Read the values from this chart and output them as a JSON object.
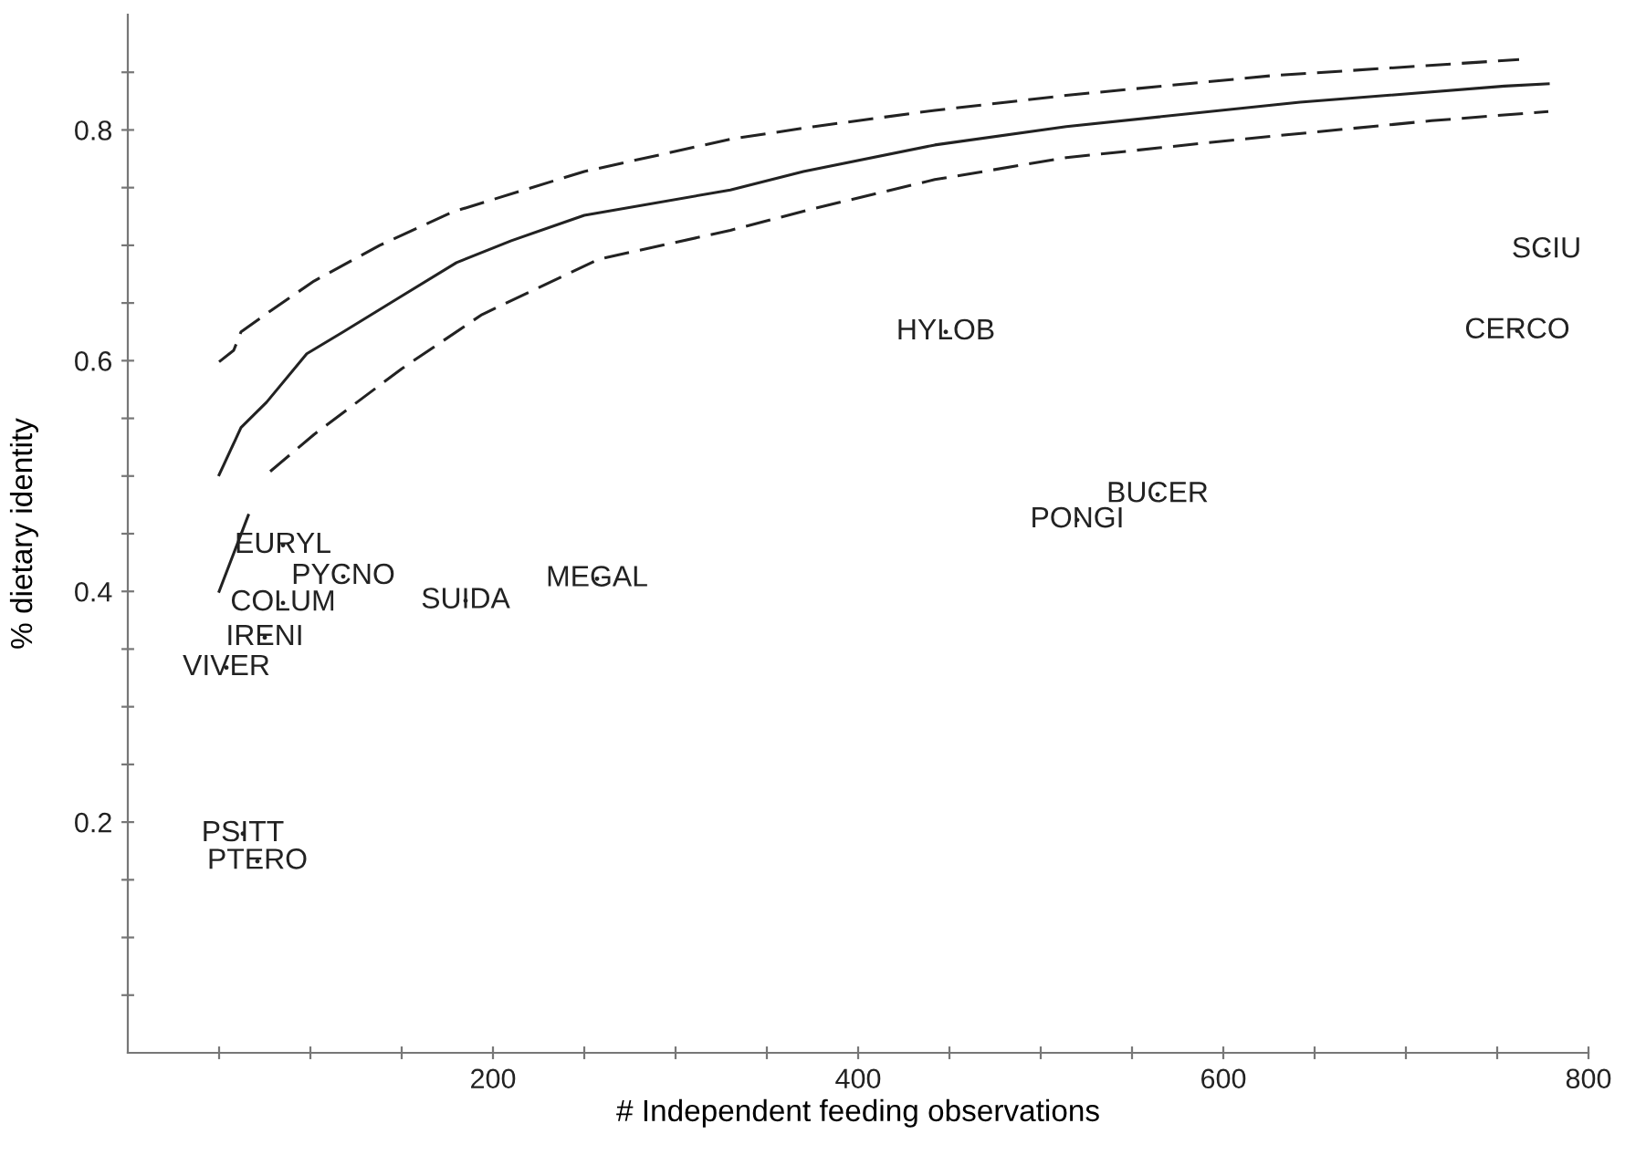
{
  "chart_data": {
    "type": "line",
    "xlabel": "# Independent feeding observations",
    "ylabel": "% dietary identity",
    "xlim": [
      0,
      800
    ],
    "ylim": [
      0,
      0.9
    ],
    "xticks": [
      {
        "value": 50,
        "label": null
      },
      {
        "value": 100,
        "label": null
      },
      {
        "value": 150,
        "label": null
      },
      200,
      {
        "value": 250,
        "label": null
      },
      {
        "value": 300,
        "label": null
      },
      {
        "value": 350,
        "label": null
      },
      400,
      {
        "value": 450,
        "label": null
      },
      {
        "value": 500,
        "label": null
      },
      {
        "value": 550,
        "label": null
      },
      600,
      {
        "value": 650,
        "label": null
      },
      {
        "value": 700,
        "label": null
      },
      {
        "value": 750,
        "label": null
      },
      800
    ],
    "yticks": [
      {
        "value": 0.05,
        "label": null
      },
      {
        "value": 0.1,
        "label": null
      },
      {
        "value": 0.15,
        "label": null
      },
      0.2,
      {
        "value": 0.25,
        "label": null
      },
      {
        "value": 0.3,
        "label": null
      },
      {
        "value": 0.35,
        "label": null
      },
      0.4,
      {
        "value": 0.45,
        "label": null
      },
      {
        "value": 0.5,
        "label": null
      },
      {
        "value": 0.55,
        "label": null
      },
      0.6,
      {
        "value": 0.65,
        "label": null
      },
      {
        "value": 0.7,
        "label": null
      },
      {
        "value": 0.75,
        "label": null
      },
      0.8,
      {
        "value": 0.85,
        "label": null
      }
    ],
    "grid": false,
    "legend": false,
    "series": [
      {
        "color": "#222222",
        "line_style": "solid",
        "x": [
          50,
          62,
          76,
          98,
          118,
          150,
          180,
          210,
          250,
          330,
          370,
          442,
          514,
          642,
          754,
          778
        ],
        "values": [
          0.501,
          0.542,
          0.564,
          0.606,
          0.625,
          0.656,
          0.685,
          0.704,
          0.726,
          0.748,
          0.764,
          0.787,
          0.803,
          0.824,
          0.838,
          0.84
        ]
      },
      {
        "color": "#222222",
        "line_style": "dashed",
        "x": [
          50,
          58,
          62,
          78,
          102,
          138,
          178,
          250,
          330,
          376,
          442,
          514,
          626,
          762
        ],
        "values": [
          0.599,
          0.609,
          0.625,
          0.643,
          0.669,
          0.7,
          0.729,
          0.764,
          0.792,
          0.803,
          0.817,
          0.83,
          0.847,
          0.861
        ]
      },
      {
        "color": "#222222",
        "line_style": "dashed",
        "x": [
          78,
          102,
          150,
          194,
          258,
          330,
          376,
          442,
          514,
          610,
          714,
          778
        ],
        "values": [
          0.504,
          0.536,
          0.593,
          0.64,
          0.688,
          0.713,
          0.732,
          0.757,
          0.776,
          0.792,
          0.808,
          0.816
        ]
      },
      {
        "color": "#222222",
        "line_style": "solid",
        "x": [
          50,
          66
        ],
        "values": [
          0.4,
          0.466
        ]
      },
      {
        "type": "scatter",
        "color": "#222222",
        "x": [
          85,
          118,
          85,
          75,
          54,
          63,
          71,
          185,
          257,
          448,
          520,
          564,
          761,
          777
        ],
        "values": [
          0.44,
          0.413,
          0.39,
          0.36,
          0.334,
          0.19,
          0.166,
          0.392,
          0.411,
          0.625,
          0.462,
          0.484,
          0.626,
          0.696
        ],
        "value_labels": [
          "EURYL",
          "PYCNO",
          "COLUM",
          "IRENI",
          "VIVER",
          "PSITT",
          "PTERO",
          "SUIDA",
          "MEGAL",
          "HYLOB",
          "PONGI",
          "BUCER",
          "CERCO",
          "SCIU"
        ]
      }
    ]
  }
}
